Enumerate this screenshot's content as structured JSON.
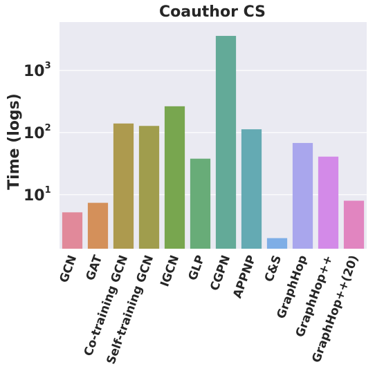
{
  "chart_data": {
    "type": "bar",
    "title": "Coauthor CS",
    "xlabel": "",
    "ylabel": "Time (logs)",
    "yscale": "log",
    "ylim": [
      1.35,
      6000
    ],
    "yticks": [
      {
        "value": 10,
        "base": "10",
        "exp": "1"
      },
      {
        "value": 100,
        "base": "10",
        "exp": "2"
      },
      {
        "value": 1000,
        "base": "10",
        "exp": "3"
      }
    ],
    "grid": true,
    "background": "#eaeaf2",
    "categories": [
      "GCN",
      "GAT",
      "Co-training GCN",
      "Self-training GCN",
      "IGCN",
      "GLP",
      "CGPN",
      "APPNP",
      "C&S",
      "GraphHop",
      "GraphHop++",
      "GraphHop++(20)"
    ],
    "values": [
      5.2,
      7.4,
      140,
      128,
      265,
      38,
      3600,
      113,
      2.0,
      68,
      41,
      8.0
    ],
    "colors": [
      "#e1899a",
      "#d4905a",
      "#ad9a4e",
      "#a09d4d",
      "#78a64f",
      "#68ac78",
      "#63aa98",
      "#64aab3",
      "#7eaee6",
      "#a9a6ed",
      "#d38ae8",
      "#e185c0"
    ]
  }
}
